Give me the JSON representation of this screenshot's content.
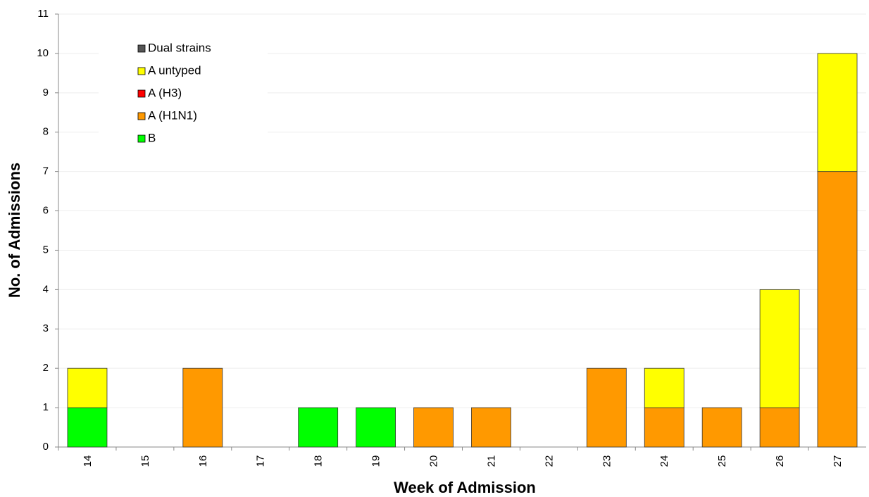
{
  "chart_data": {
    "type": "stacked-bar",
    "x_label": "Week of Admission",
    "y_label": "No. of Admissions",
    "categories": [
      "14",
      "15",
      "16",
      "17",
      "18",
      "19",
      "20",
      "21",
      "22",
      "23",
      "24",
      "25",
      "26",
      "27"
    ],
    "series": [
      {
        "name": "B",
        "color": "#00ff00",
        "values": [
          1,
          0,
          0,
          0,
          1,
          1,
          0,
          0,
          0,
          0,
          0,
          0,
          0,
          0
        ]
      },
      {
        "name": "A (H1N1)",
        "color": "#ff9900",
        "values": [
          0,
          0,
          2,
          0,
          0,
          0,
          1,
          1,
          0,
          2,
          1,
          1,
          1,
          7
        ]
      },
      {
        "name": "A (H3)",
        "color": "#ff0000",
        "values": [
          0,
          0,
          0,
          0,
          0,
          0,
          0,
          0,
          0,
          0,
          0,
          0,
          0,
          0
        ]
      },
      {
        "name": "A untyped",
        "color": "#ffff00",
        "values": [
          1,
          0,
          0,
          0,
          0,
          0,
          0,
          0,
          0,
          0,
          1,
          0,
          3,
          3
        ]
      },
      {
        "name": "Dual strains",
        "color": "#555555",
        "values": [
          0,
          0,
          0,
          0,
          0,
          0,
          0,
          0,
          0,
          0,
          0,
          0,
          0,
          0
        ]
      }
    ],
    "ylim": [
      0,
      11
    ],
    "yticks": [
      0,
      1,
      2,
      3,
      4,
      5,
      6,
      7,
      8,
      9,
      10,
      11
    ],
    "grid": true,
    "legend": "top-left"
  }
}
